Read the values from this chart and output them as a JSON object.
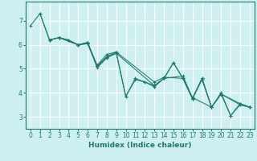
{
  "xlabel": "Humidex (Indice chaleur)",
  "ylabel": "",
  "xlim": [
    -0.5,
    23.5
  ],
  "ylim": [
    2.5,
    7.8
  ],
  "yticks": [
    3,
    4,
    5,
    6,
    7
  ],
  "xticks": [
    0,
    1,
    2,
    3,
    4,
    5,
    6,
    7,
    8,
    9,
    10,
    11,
    12,
    13,
    14,
    15,
    16,
    17,
    18,
    19,
    20,
    21,
    22,
    23
  ],
  "bg_color": "#cff0f0",
  "line_color": "#1a7a6e",
  "grid_color": "#ffffff",
  "lines": [
    {
      "x": [
        0,
        1,
        2,
        3,
        4,
        5,
        6,
        7,
        8,
        9,
        10,
        11,
        12,
        13,
        14,
        15,
        16,
        17,
        18,
        19,
        20,
        21,
        22,
        23
      ],
      "y": [
        6.8,
        7.3,
        6.2,
        6.3,
        6.2,
        6.0,
        6.1,
        5.1,
        5.5,
        5.7,
        3.85,
        4.6,
        4.45,
        4.3,
        4.6,
        5.25,
        4.6,
        3.75,
        4.6,
        3.4,
        4.0,
        3.05,
        3.55,
        3.4
      ]
    },
    {
      "x": [
        1,
        2,
        3,
        4,
        5,
        6,
        7,
        8,
        9,
        10,
        11,
        12,
        13,
        14,
        15,
        16,
        17,
        18,
        19,
        20,
        21,
        22,
        23
      ],
      "y": [
        7.3,
        6.2,
        6.3,
        6.2,
        6.0,
        6.05,
        5.05,
        5.45,
        5.65,
        3.85,
        4.55,
        4.45,
        4.25,
        4.6,
        5.25,
        4.6,
        3.75,
        4.55,
        3.4,
        3.95,
        3.05,
        3.5,
        3.4
      ]
    },
    {
      "x": [
        2,
        3,
        5,
        6,
        7,
        8,
        9,
        13,
        14,
        16,
        17,
        19,
        20,
        22,
        23
      ],
      "y": [
        6.2,
        6.3,
        6.0,
        6.05,
        5.15,
        5.6,
        5.7,
        4.45,
        4.65,
        4.6,
        3.8,
        3.4,
        3.95,
        3.5,
        3.4
      ]
    },
    {
      "x": [
        2,
        3,
        5,
        6,
        7,
        8,
        9,
        13,
        14,
        16,
        17,
        18,
        19,
        20,
        22,
        23
      ],
      "y": [
        6.2,
        6.3,
        6.0,
        6.1,
        5.1,
        5.5,
        5.65,
        4.3,
        4.6,
        4.7,
        3.78,
        4.6,
        3.4,
        3.95,
        3.55,
        3.4
      ]
    }
  ]
}
